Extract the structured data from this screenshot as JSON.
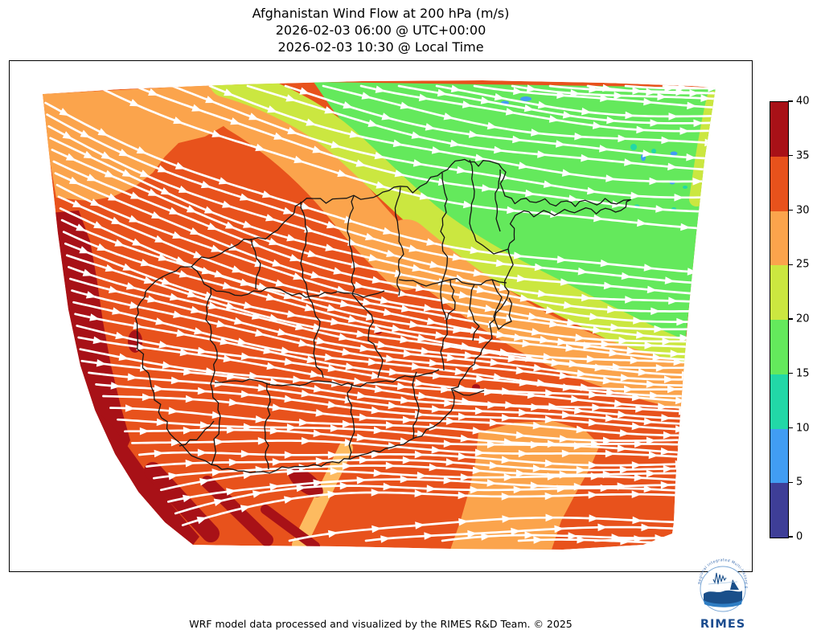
{
  "title": {
    "line1": "Afghanistan Wind Flow at 200 hPa (m/s)",
    "line2": "2026-02-03 06:00 @ UTC+00:00",
    "line3": "2026-02-03 10:30 @ Local Time"
  },
  "footer": {
    "credit": "WRF model data processed and visualized by the RIMES R&D Team. © 2025"
  },
  "logo": {
    "name": "RIMES",
    "arc_text": "Regional Integrated Multi-Hazard Early Warning System"
  },
  "colorbar": {
    "units": "m/s",
    "min": 0,
    "max": 40,
    "ticks": [
      0,
      5,
      10,
      15,
      20,
      25,
      30,
      35,
      40
    ],
    "segments": [
      {
        "from": 0,
        "to": 5,
        "color": "#3e3e97"
      },
      {
        "from": 5,
        "to": 10,
        "color": "#419df3"
      },
      {
        "from": 10,
        "to": 15,
        "color": "#22d8a7"
      },
      {
        "from": 15,
        "to": 20,
        "color": "#64e95c"
      },
      {
        "from": 20,
        "to": 25,
        "color": "#cbe740"
      },
      {
        "from": 25,
        "to": 30,
        "color": "#fba44c"
      },
      {
        "from": 30,
        "to": 35,
        "color": "#e8521c"
      },
      {
        "from": 35,
        "to": 40,
        "color": "#a81117"
      }
    ]
  },
  "chart_data": {
    "type": "map",
    "variable": "Wind speed at 200 hPa",
    "units": "m/s",
    "region": "Afghanistan and surrounding WRF model domain",
    "overlay": "white streamlines with arrowheads, flow directed west to east",
    "boundaries": "Afghanistan province boundaries drawn in black",
    "speed_regions": [
      {
        "area": "northwest corner",
        "value_ms": "25-30"
      },
      {
        "area": "north-center transition band (NW to SE diagonal)",
        "value_ms": "20-25"
      },
      {
        "area": "northeast quadrant",
        "value_ms": "15-20"
      },
      {
        "area": "small spots in northeast",
        "value_ms": "10-15"
      },
      {
        "area": "center, west and south (dominant)",
        "value_ms": "30-35"
      },
      {
        "area": "west edge and southwest diagonal bands",
        "value_ms": "35-40"
      },
      {
        "area": "east-center band and bottom-center wedge",
        "value_ms": "25-30"
      }
    ]
  }
}
